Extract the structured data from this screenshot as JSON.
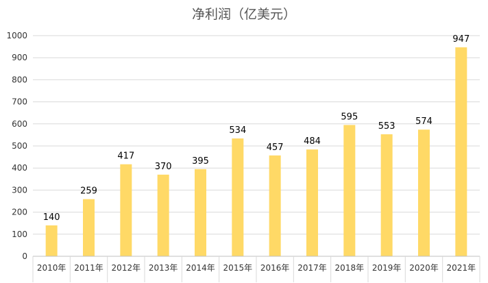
{
  "chart_data": {
    "type": "bar",
    "title": "净利润（亿美元）",
    "categories": [
      "2010年",
      "2011年",
      "2012年",
      "2013年",
      "2014年",
      "2015年",
      "2016年",
      "2017年",
      "2018年",
      "2019年",
      "2020年",
      "2021年"
    ],
    "values": [
      140,
      259,
      417,
      370,
      395,
      534,
      457,
      484,
      595,
      553,
      574,
      947
    ],
    "ylim": [
      0,
      1000
    ],
    "yticks": [
      0,
      100,
      200,
      300,
      400,
      500,
      600,
      700,
      800,
      900,
      1000
    ],
    "xlabel": "",
    "ylabel": "",
    "grid": true,
    "bar_color": "#FFD966",
    "grid_color": "#D9D9D9"
  }
}
